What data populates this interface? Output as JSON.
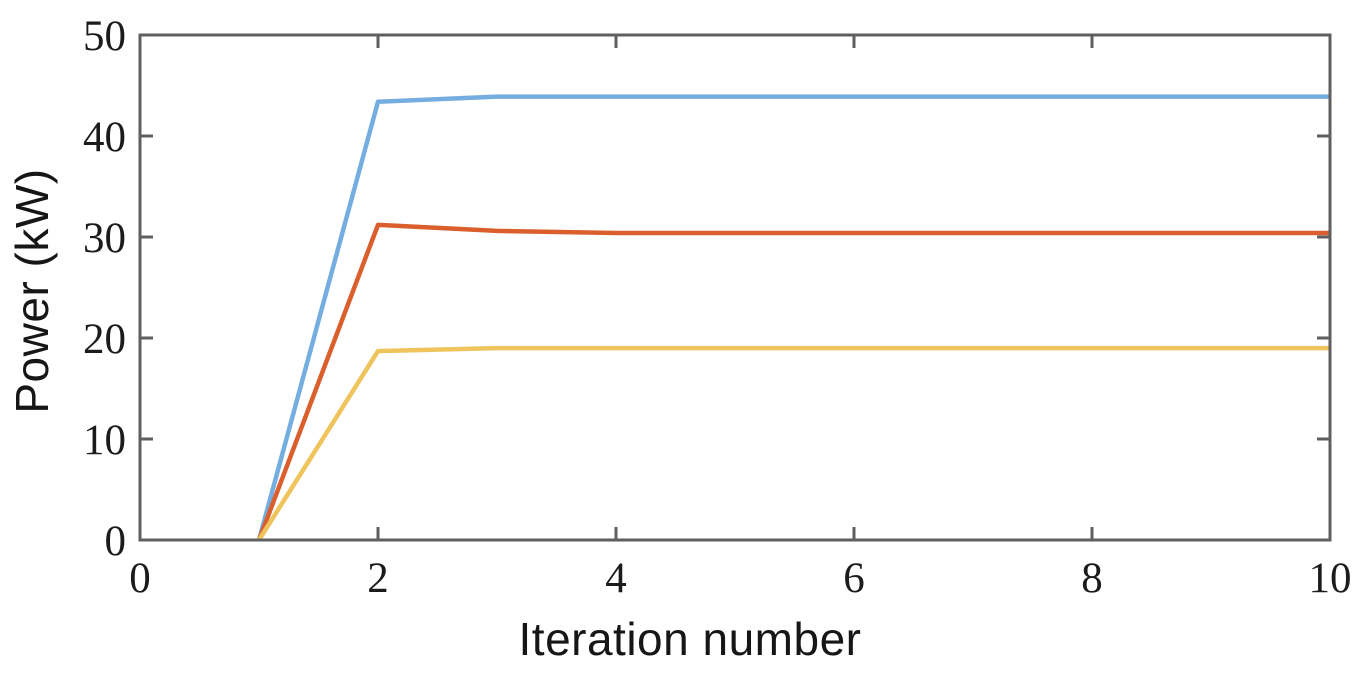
{
  "figure": {
    "background": "#ffffff",
    "axes_line_color": "#5f5f5f",
    "tick_label_color": "#1b1b1b",
    "axis_label_color": "#161616"
  },
  "chart_data": {
    "type": "line",
    "title": "",
    "xlabel": "Iteration number",
    "ylabel": "Power (kW)",
    "xlim": [
      0,
      10
    ],
    "ylim": [
      0,
      50
    ],
    "xticks": [
      0,
      2,
      4,
      6,
      8,
      10
    ],
    "yticks": [
      0,
      10,
      20,
      30,
      40,
      50
    ],
    "grid": false,
    "legend": null,
    "box": true,
    "series": [
      {
        "name": "power-curve-blue",
        "color": "#74AEE0",
        "x": [
          1,
          2,
          3,
          4,
          5,
          6,
          7,
          8,
          9,
          10
        ],
        "y": [
          0,
          43.4,
          43.9,
          43.9,
          43.9,
          43.9,
          43.9,
          43.9,
          43.9,
          43.9
        ]
      },
      {
        "name": "power-curve-red",
        "color": "#DB5F2C",
        "x": [
          1,
          2,
          3,
          4,
          5,
          6,
          7,
          8,
          9,
          10
        ],
        "y": [
          0,
          31.2,
          30.6,
          30.4,
          30.4,
          30.4,
          30.4,
          30.4,
          30.4,
          30.4
        ]
      },
      {
        "name": "power-curve-yellow",
        "color": "#EFC45C",
        "x": [
          1,
          2,
          3,
          4,
          5,
          6,
          7,
          8,
          9,
          10
        ],
        "y": [
          0,
          18.7,
          19.0,
          19.0,
          19.0,
          19.0,
          19.0,
          19.0,
          19.0,
          19.0
        ]
      }
    ]
  }
}
